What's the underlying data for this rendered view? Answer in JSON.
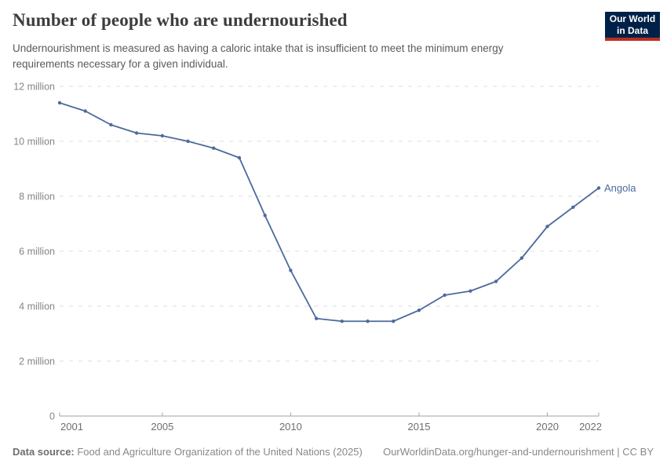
{
  "header": {
    "title": "Number of people who are undernourished",
    "subtitle": "Undernourishment is measured as having a caloric intake that is insufficient to meet the minimum energy requirements necessary for a given individual."
  },
  "logo": {
    "line1": "Our World",
    "line2": "in Data",
    "bg_color": "#002147",
    "underline_color": "#bc2e22"
  },
  "chart_data": {
    "type": "line",
    "title": "Number of people who are undernourished",
    "unit": "people",
    "x": [
      2001,
      2002,
      2003,
      2004,
      2005,
      2006,
      2007,
      2008,
      2009,
      2010,
      2011,
      2012,
      2013,
      2014,
      2015,
      2016,
      2017,
      2018,
      2019,
      2020,
      2021,
      2022
    ],
    "series": [
      {
        "name": "Angola",
        "color": "#4c6a9c",
        "values_millions": [
          11.4,
          11.1,
          10.6,
          10.3,
          10.2,
          10.0,
          9.75,
          9.4,
          7.3,
          5.3,
          3.55,
          3.45,
          3.45,
          3.45,
          3.85,
          4.4,
          4.55,
          4.9,
          5.75,
          6.9,
          7.6,
          8.3
        ]
      }
    ],
    "end_label": "Angola",
    "x_tick_labels": [
      "2001",
      "2005",
      "2010",
      "2015",
      "2020",
      "2022"
    ],
    "y_ticks": [
      {
        "millions": 0,
        "label": "0"
      },
      {
        "millions": 2,
        "label": "2 million"
      },
      {
        "millions": 4,
        "label": "4 million"
      },
      {
        "millions": 6,
        "label": "6 million"
      },
      {
        "millions": 8,
        "label": "8 million"
      },
      {
        "millions": 10,
        "label": "10 million"
      },
      {
        "millions": 12,
        "label": "12 million"
      }
    ],
    "ylim_millions": [
      0,
      12
    ],
    "xlim": [
      2001,
      2022
    ],
    "grid": "horizontal-dashed",
    "legend_position": "end-of-line-label"
  },
  "footer": {
    "datasource_label": "Data source:",
    "datasource_text": " Food and Agriculture Organization of the United Nations (2025)",
    "credit": "OurWorldinData.org/hunger-and-undernourishment | CC BY"
  }
}
